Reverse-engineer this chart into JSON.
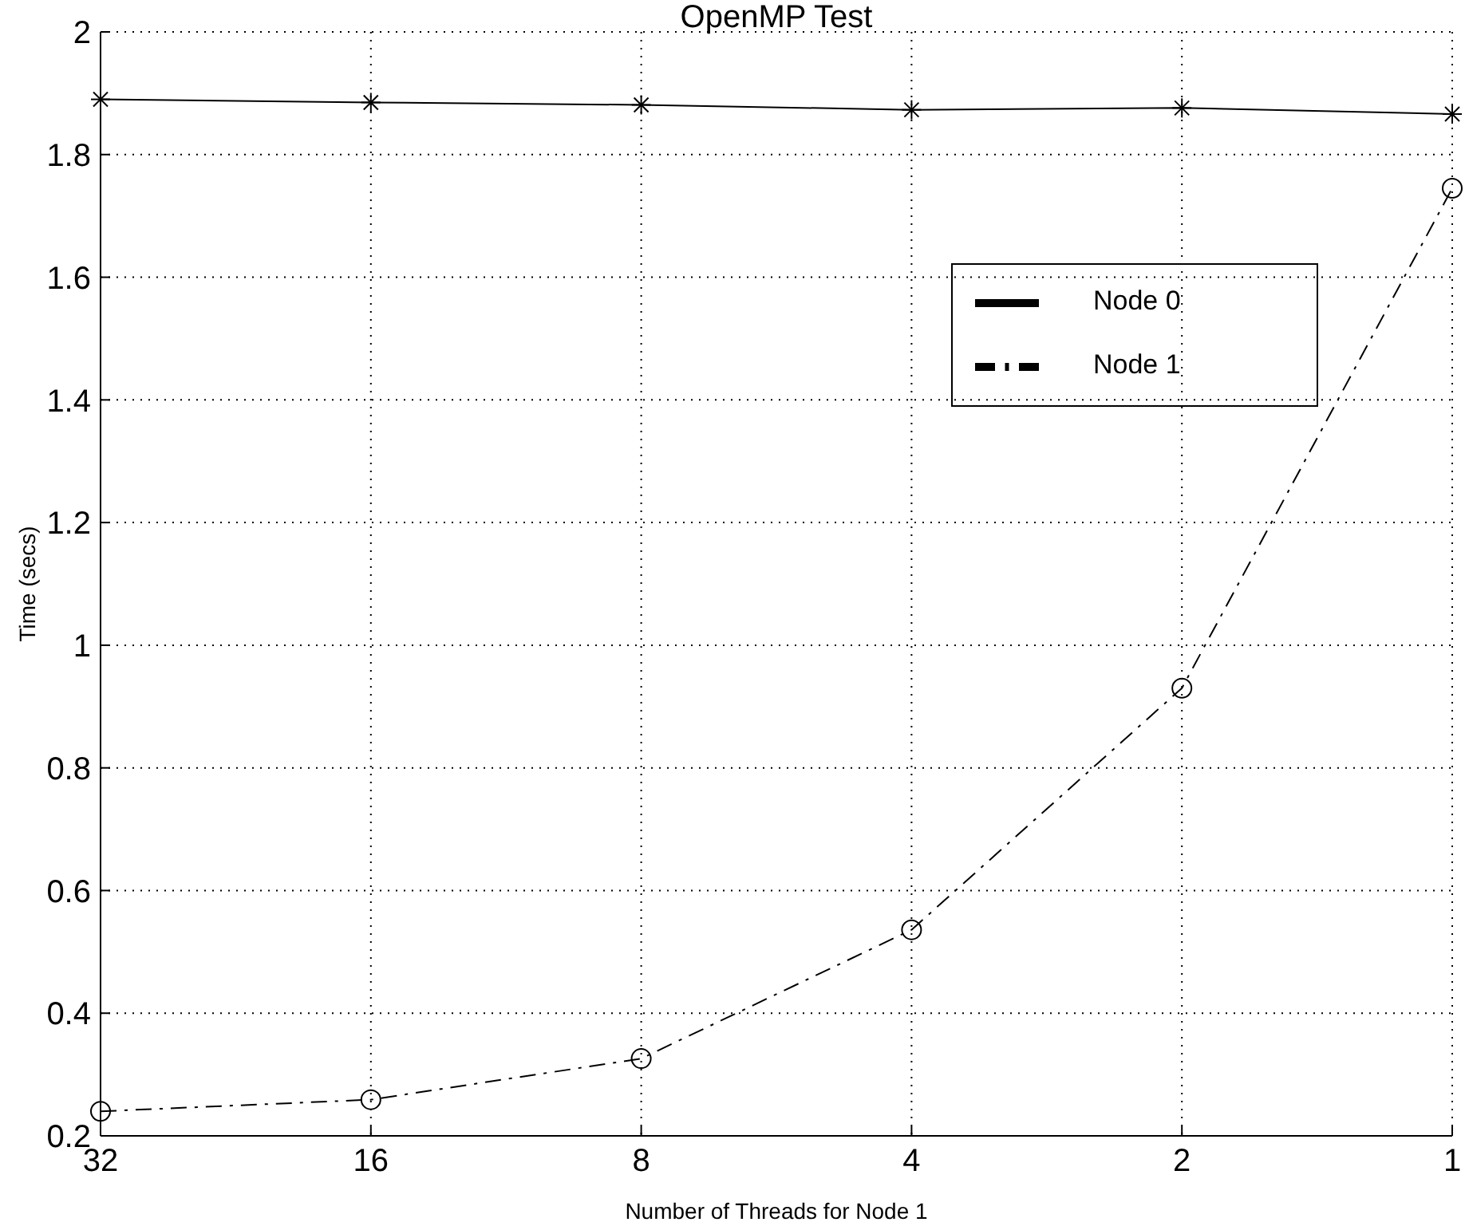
{
  "chart_data": {
    "type": "line",
    "title": "OpenMP Test",
    "xlabel": "Number of Threads for Node 1",
    "ylabel": "Time (secs)",
    "categories": [
      "32",
      "16",
      "8",
      "4",
      "2",
      "1"
    ],
    "series": [
      {
        "name": "Node 0",
        "color": "#000000",
        "marker": "cross",
        "line_style": "solid",
        "values": [
          1.89,
          1.885,
          1.881,
          1.873,
          1.876,
          1.866
        ]
      },
      {
        "name": "Node 1",
        "color": "#000000",
        "marker": "circle",
        "line_style": "dashed",
        "values": [
          0.24,
          0.259,
          0.326,
          0.536,
          0.93,
          1.745
        ]
      }
    ],
    "ylim": [
      0.2,
      2
    ],
    "yticks": [
      0.2,
      0.4,
      0.6,
      0.8,
      1,
      1.2,
      1.4,
      1.6,
      1.8,
      2
    ],
    "grid": true,
    "legend": "top right"
  }
}
